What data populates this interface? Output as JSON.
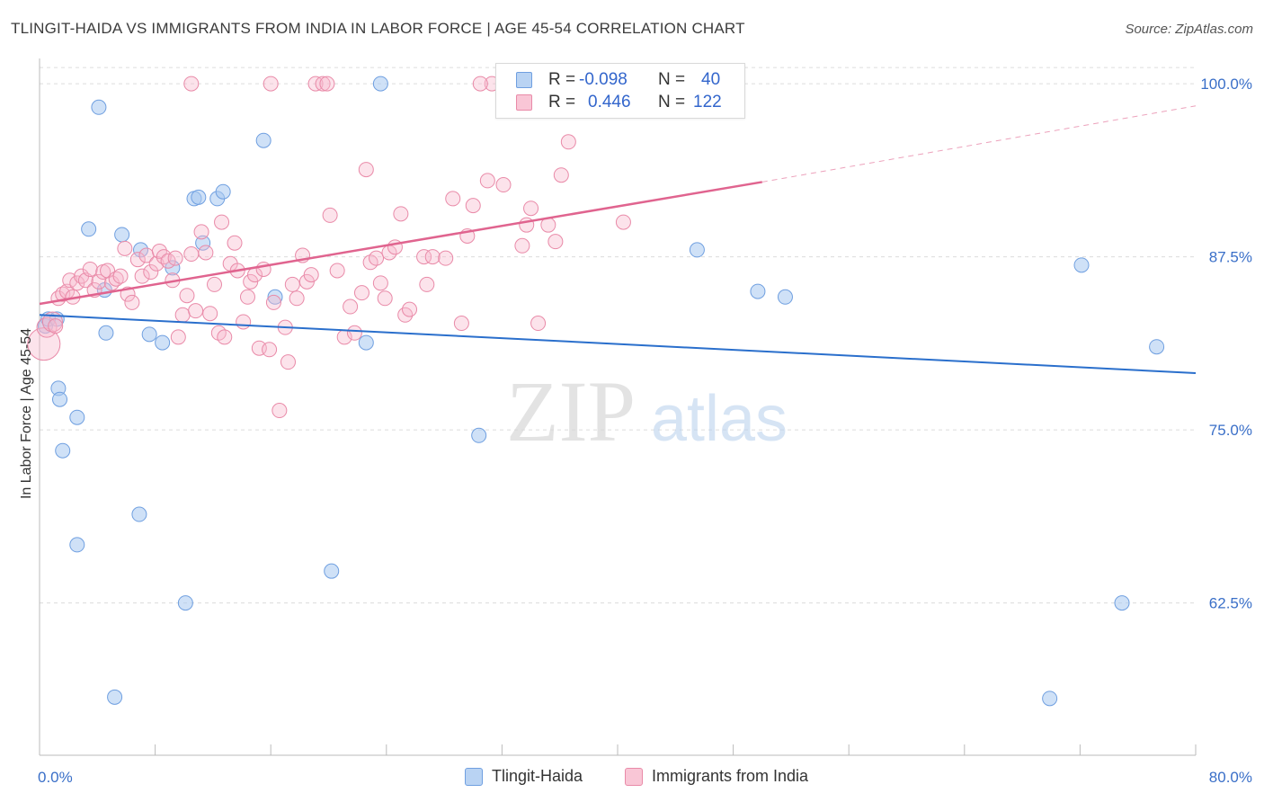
{
  "title": "TLINGIT-HAIDA VS IMMIGRANTS FROM INDIA IN LABOR FORCE | AGE 45-54 CORRELATION CHART",
  "source": "Source: ZipAtlas.com",
  "watermark": {
    "zip": "ZIP",
    "atlas": "atlas"
  },
  "legend_box": {
    "r_label": "R =",
    "n_label": "N =",
    "rows": [
      {
        "r": "-0.098",
        "n": "40"
      },
      {
        "r": "0.446",
        "n": "122"
      }
    ]
  },
  "colors": {
    "blue_fill": "#a8c8f0",
    "blue_stroke": "#6f9fe0",
    "blue_line": "#2a6fcc",
    "pink_fill": "#f7b8cc",
    "pink_stroke": "#e98aa8",
    "pink_line": "#e0648f",
    "tick_label": "#3a6fc8",
    "grid": "#dcdcdc"
  },
  "chart_data": {
    "type": "scatter",
    "title": "TLINGIT-HAIDA VS IMMIGRANTS FROM INDIA IN LABOR FORCE | AGE 45-54 CORRELATION CHART",
    "xlabel": "",
    "ylabel": "In Labor Force | Age 45-54",
    "xlim": [
      0,
      80
    ],
    "ylim": [
      51.5,
      101.5
    ],
    "x_tick_labels": [
      {
        "value": 0,
        "label": "0.0%"
      },
      {
        "value": 80,
        "label": "80.0%"
      }
    ],
    "y_ticks": [
      {
        "value": 62.5,
        "label": "62.5%"
      },
      {
        "value": 75,
        "label": "75.0%"
      },
      {
        "value": 87.5,
        "label": "87.5%"
      },
      {
        "value": 100,
        "label": "100.0%"
      }
    ],
    "grid": true,
    "legend": "bottom-center",
    "series": [
      {
        "name": "Tlingit-Haida",
        "r": -0.098,
        "n": 40,
        "trend": {
          "x0": 0,
          "y0": 83.3,
          "x1": 80,
          "y1": 79.1
        },
        "points": [
          [
            0.4,
            82.5
          ],
          [
            0.6,
            83
          ],
          [
            1.2,
            83
          ],
          [
            1.3,
            78
          ],
          [
            1.4,
            77.2
          ],
          [
            1.6,
            73.5
          ],
          [
            2.6,
            75.9
          ],
          [
            2.6,
            66.7
          ],
          [
            3.4,
            89.5
          ],
          [
            4.1,
            98.3
          ],
          [
            4.6,
            82
          ],
          [
            4.5,
            85.1
          ],
          [
            5.2,
            55.7
          ],
          [
            5.7,
            89.1
          ],
          [
            6.9,
            68.9
          ],
          [
            7,
            88
          ],
          [
            7.6,
            81.9
          ],
          [
            8.5,
            81.3
          ],
          [
            9.2,
            86.7
          ],
          [
            10.1,
            62.5
          ],
          [
            10.7,
            91.7
          ],
          [
            11,
            91.8
          ],
          [
            11.3,
            88.5
          ],
          [
            12.3,
            91.7
          ],
          [
            12.7,
            92.2
          ],
          [
            15.5,
            95.9
          ],
          [
            16.3,
            84.6
          ],
          [
            20.2,
            64.8
          ],
          [
            22.6,
            81.3
          ],
          [
            23.6,
            100
          ],
          [
            30.4,
            74.6
          ],
          [
            36.3,
            100
          ],
          [
            45.5,
            88
          ],
          [
            49.7,
            85
          ],
          [
            51.6,
            84.6
          ],
          [
            69.9,
            55.6
          ],
          [
            72.1,
            86.9
          ],
          [
            74.9,
            62.5
          ],
          [
            77.3,
            81
          ]
        ]
      },
      {
        "name": "Immigrants from India",
        "r": 0.446,
        "n": 122,
        "trend": {
          "x0": 0,
          "y0": 84.1,
          "x1": 50,
          "y1": 92.9,
          "dash_x1": 80,
          "dash_y1": 98.4
        },
        "points": [
          [
            0.3,
            81.2
          ],
          [
            0.5,
            82.4
          ],
          [
            0.9,
            82.8
          ],
          [
            1.1,
            82.5
          ],
          [
            1.3,
            84.5
          ],
          [
            1.6,
            84.8
          ],
          [
            1.9,
            85
          ],
          [
            2.1,
            85.8
          ],
          [
            2.3,
            84.6
          ],
          [
            2.6,
            85.6
          ],
          [
            2.9,
            86.1
          ],
          [
            3.2,
            85.8
          ],
          [
            3.5,
            86.6
          ],
          [
            3.8,
            85.1
          ],
          [
            4.1,
            85.7
          ],
          [
            4.4,
            86.4
          ],
          [
            4.7,
            86.5
          ],
          [
            5,
            85.6
          ],
          [
            5.3,
            85.9
          ],
          [
            5.6,
            86.1
          ],
          [
            5.9,
            88.1
          ],
          [
            6.1,
            84.8
          ],
          [
            6.4,
            84.2
          ],
          [
            6.8,
            87.3
          ],
          [
            7.1,
            86.1
          ],
          [
            7.4,
            87.6
          ],
          [
            7.7,
            86.4
          ],
          [
            8.1,
            87
          ],
          [
            8.3,
            87.9
          ],
          [
            8.6,
            87.5
          ],
          [
            8.9,
            87.2
          ],
          [
            9.2,
            85.8
          ],
          [
            9.4,
            87.4
          ],
          [
            9.6,
            81.7
          ],
          [
            9.9,
            83.3
          ],
          [
            10.2,
            84.7
          ],
          [
            10.5,
            87.7
          ],
          [
            10.8,
            83.6
          ],
          [
            11.2,
            89.3
          ],
          [
            11.5,
            87.8
          ],
          [
            11.8,
            83.4
          ],
          [
            12.1,
            85.5
          ],
          [
            12.4,
            82
          ],
          [
            12.6,
            90
          ],
          [
            12.8,
            81.7
          ],
          [
            13.2,
            87
          ],
          [
            13.5,
            88.5
          ],
          [
            13.7,
            86.5
          ],
          [
            14.1,
            82.8
          ],
          [
            14.4,
            84.6
          ],
          [
            14.6,
            85.7
          ],
          [
            14.9,
            86.2
          ],
          [
            15.2,
            80.9
          ],
          [
            15.5,
            86.6
          ],
          [
            15.9,
            80.8
          ],
          [
            16.2,
            84.2
          ],
          [
            16.6,
            76.4
          ],
          [
            17,
            82.4
          ],
          [
            17.2,
            79.9
          ],
          [
            17.5,
            85.5
          ],
          [
            17.8,
            84.5
          ],
          [
            18.2,
            87.6
          ],
          [
            18.5,
            85.7
          ],
          [
            18.8,
            86.2
          ],
          [
            19.1,
            100
          ],
          [
            19.6,
            100
          ],
          [
            19.9,
            100
          ],
          [
            20.1,
            90.5
          ],
          [
            20.6,
            86.5
          ],
          [
            21.1,
            81.7
          ],
          [
            21.5,
            83.9
          ],
          [
            21.8,
            82
          ],
          [
            22.3,
            84.9
          ],
          [
            22.6,
            93.8
          ],
          [
            22.9,
            87.1
          ],
          [
            23.3,
            87.4
          ],
          [
            23.6,
            85.6
          ],
          [
            23.9,
            84.5
          ],
          [
            24.2,
            87.8
          ],
          [
            24.6,
            88.2
          ],
          [
            25,
            90.6
          ],
          [
            25.3,
            83.3
          ],
          [
            25.6,
            83.7
          ],
          [
            26.6,
            87.5
          ],
          [
            27.2,
            87.5
          ],
          [
            28.1,
            87.4
          ],
          [
            28.6,
            91.7
          ],
          [
            29.2,
            82.7
          ],
          [
            29.6,
            89
          ],
          [
            30,
            91.2
          ],
          [
            31.3,
            100
          ],
          [
            32.1,
            92.7
          ],
          [
            33.4,
            88.3
          ],
          [
            33.7,
            89.8
          ],
          [
            34,
            91
          ],
          [
            34.5,
            82.7
          ],
          [
            35.2,
            89.8
          ],
          [
            35.7,
            88.6
          ],
          [
            36.1,
            93.4
          ],
          [
            36.6,
            95.8
          ],
          [
            37.7,
            100
          ],
          [
            40.4,
            90
          ],
          [
            10.5,
            100
          ],
          [
            30.5,
            100
          ],
          [
            26.8,
            85.5
          ],
          [
            16,
            100
          ],
          [
            31,
            93
          ]
        ]
      }
    ]
  },
  "bottom_legend": [
    {
      "label": "Tlingit-Haida"
    },
    {
      "label": "Immigrants from India"
    }
  ]
}
